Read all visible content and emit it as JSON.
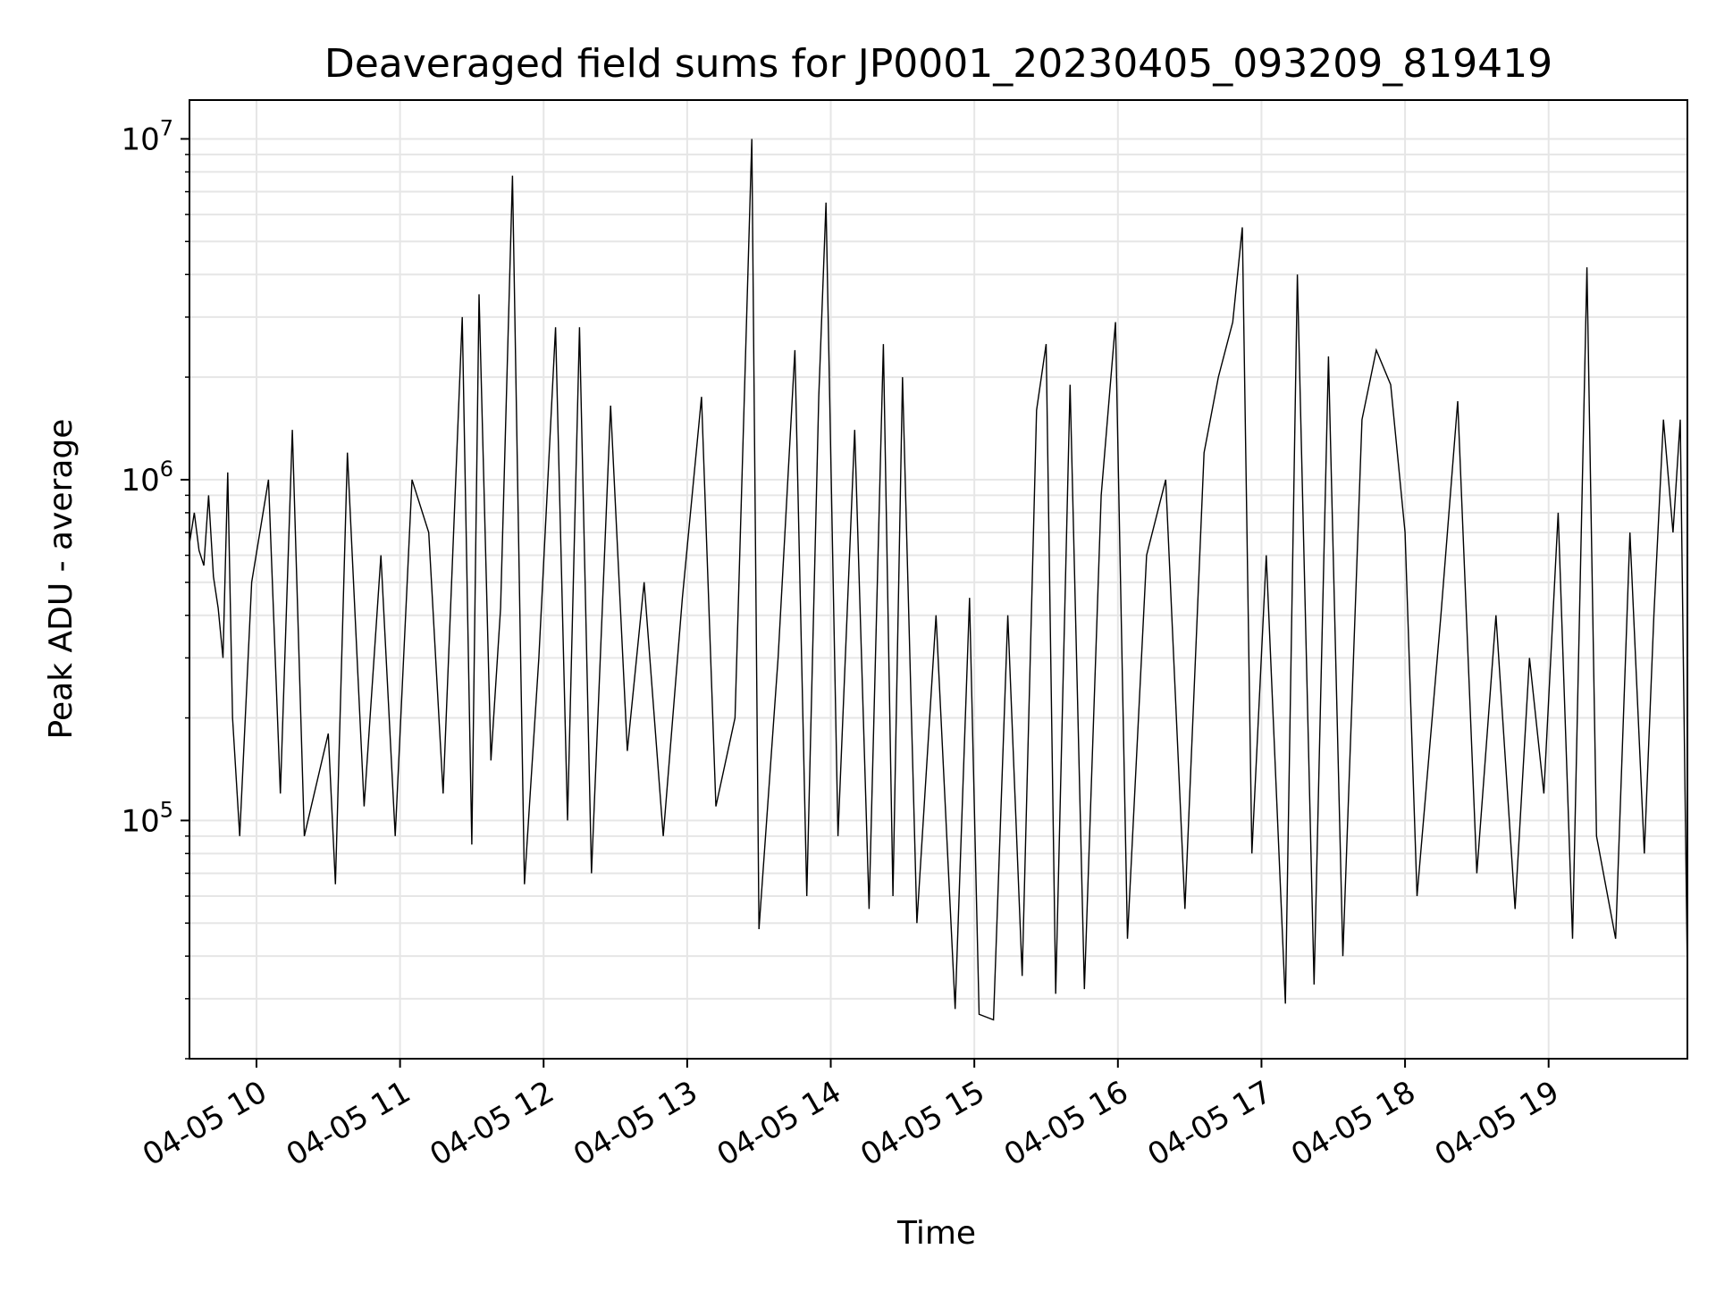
{
  "chart_data": {
    "type": "line",
    "title": "Deaveraged field sums for JP0001_20230405_093209_819419",
    "xlabel": "Time",
    "ylabel": "Peak ADU - average",
    "y_scale": "log",
    "grid": true,
    "line_color": "#000000",
    "grid_color": "#e6e6e6",
    "x_range": [
      "2023-04-05 09:32",
      "2023-04-05 19:58"
    ],
    "ylim": [
      20000,
      13000000
    ],
    "x_ticks": [
      {
        "time": "2023-04-05 10:00",
        "label": "04-05 10"
      },
      {
        "time": "2023-04-05 11:00",
        "label": "04-05 11"
      },
      {
        "time": "2023-04-05 12:00",
        "label": "04-05 12"
      },
      {
        "time": "2023-04-05 13:00",
        "label": "04-05 13"
      },
      {
        "time": "2023-04-05 14:00",
        "label": "04-05 14"
      },
      {
        "time": "2023-04-05 15:00",
        "label": "04-05 15"
      },
      {
        "time": "2023-04-05 16:00",
        "label": "04-05 16"
      },
      {
        "time": "2023-04-05 17:00",
        "label": "04-05 17"
      },
      {
        "time": "2023-04-05 18:00",
        "label": "04-05 18"
      },
      {
        "time": "2023-04-05 19:00",
        "label": "04-05 19"
      }
    ],
    "y_ticks": [
      {
        "value": 100000,
        "base": "10",
        "exp": "5"
      },
      {
        "value": 1000000,
        "base": "10",
        "exp": "6"
      },
      {
        "value": 10000000,
        "base": "10",
        "exp": "7"
      }
    ],
    "series": [
      {
        "points": [
          [
            "2023-04-05 09:32",
            650000
          ],
          [
            "2023-04-05 09:34",
            800000
          ],
          [
            "2023-04-05 09:36",
            620000
          ],
          [
            "2023-04-05 09:38",
            560000
          ],
          [
            "2023-04-05 09:40",
            900000
          ],
          [
            "2023-04-05 09:42",
            520000
          ],
          [
            "2023-04-05 09:44",
            420000
          ],
          [
            "2023-04-05 09:46",
            300000
          ],
          [
            "2023-04-05 09:48",
            1050000
          ],
          [
            "2023-04-05 09:50",
            200000
          ],
          [
            "2023-04-05 09:53",
            90000
          ],
          [
            "2023-04-05 09:58",
            500000
          ],
          [
            "2023-04-05 10:05",
            1000000
          ],
          [
            "2023-04-05 10:10",
            120000
          ],
          [
            "2023-04-05 10:15",
            1400000
          ],
          [
            "2023-04-05 10:20",
            90000
          ],
          [
            "2023-04-05 10:30",
            180000
          ],
          [
            "2023-04-05 10:33",
            65000
          ],
          [
            "2023-04-05 10:38",
            1200000
          ],
          [
            "2023-04-05 10:45",
            110000
          ],
          [
            "2023-04-05 10:52",
            600000
          ],
          [
            "2023-04-05 10:58",
            90000
          ],
          [
            "2023-04-05 11:05",
            1000000
          ],
          [
            "2023-04-05 11:12",
            700000
          ],
          [
            "2023-04-05 11:18",
            120000
          ],
          [
            "2023-04-05 11:26",
            3000000
          ],
          [
            "2023-04-05 11:30",
            85000
          ],
          [
            "2023-04-05 11:33",
            3500000
          ],
          [
            "2023-04-05 11:38",
            150000
          ],
          [
            "2023-04-05 11:42",
            420000
          ],
          [
            "2023-04-05 11:47",
            7800000
          ],
          [
            "2023-04-05 11:52",
            65000
          ],
          [
            "2023-04-05 11:58",
            300000
          ],
          [
            "2023-04-05 12:05",
            2800000
          ],
          [
            "2023-04-05 12:10",
            100000
          ],
          [
            "2023-04-05 12:15",
            2800000
          ],
          [
            "2023-04-05 12:20",
            70000
          ],
          [
            "2023-04-05 12:28",
            1650000
          ],
          [
            "2023-04-05 12:35",
            160000
          ],
          [
            "2023-04-05 12:42",
            500000
          ],
          [
            "2023-04-05 12:50",
            90000
          ],
          [
            "2023-04-05 12:58",
            450000
          ],
          [
            "2023-04-05 13:06",
            1750000
          ],
          [
            "2023-04-05 13:12",
            110000
          ],
          [
            "2023-04-05 13:20",
            200000
          ],
          [
            "2023-04-05 13:27",
            10000000
          ],
          [
            "2023-04-05 13:30",
            48000
          ],
          [
            "2023-04-05 13:38",
            300000
          ],
          [
            "2023-04-05 13:45",
            2400000
          ],
          [
            "2023-04-05 13:50",
            60000
          ],
          [
            "2023-04-05 13:55",
            1750000
          ],
          [
            "2023-04-05 13:58",
            6500000
          ],
          [
            "2023-04-05 14:03",
            90000
          ],
          [
            "2023-04-05 14:10",
            1400000
          ],
          [
            "2023-04-05 14:16",
            55000
          ],
          [
            "2023-04-05 14:22",
            2500000
          ],
          [
            "2023-04-05 14:26",
            60000
          ],
          [
            "2023-04-05 14:30",
            2000000
          ],
          [
            "2023-04-05 14:36",
            50000
          ],
          [
            "2023-04-05 14:44",
            400000
          ],
          [
            "2023-04-05 14:52",
            28000
          ],
          [
            "2023-04-05 14:58",
            450000
          ],
          [
            "2023-04-05 15:02",
            27000
          ],
          [
            "2023-04-05 15:08",
            26000
          ],
          [
            "2023-04-05 15:14",
            400000
          ],
          [
            "2023-04-05 15:20",
            35000
          ],
          [
            "2023-04-05 15:26",
            1600000
          ],
          [
            "2023-04-05 15:30",
            2500000
          ],
          [
            "2023-04-05 15:34",
            31000
          ],
          [
            "2023-04-05 15:40",
            1900000
          ],
          [
            "2023-04-05 15:46",
            32000
          ],
          [
            "2023-04-05 15:53",
            900000
          ],
          [
            "2023-04-05 15:59",
            2900000
          ],
          [
            "2023-04-05 16:04",
            45000
          ],
          [
            "2023-04-05 16:12",
            600000
          ],
          [
            "2023-04-05 16:20",
            1000000
          ],
          [
            "2023-04-05 16:28",
            55000
          ],
          [
            "2023-04-05 16:36",
            1200000
          ],
          [
            "2023-04-05 16:42",
            2000000
          ],
          [
            "2023-04-05 16:48",
            2900000
          ],
          [
            "2023-04-05 16:52",
            5500000
          ],
          [
            "2023-04-05 16:56",
            80000
          ],
          [
            "2023-04-05 17:02",
            600000
          ],
          [
            "2023-04-05 17:10",
            29000
          ],
          [
            "2023-04-05 17:15",
            4000000
          ],
          [
            "2023-04-05 17:22",
            33000
          ],
          [
            "2023-04-05 17:28",
            2300000
          ],
          [
            "2023-04-05 17:34",
            40000
          ],
          [
            "2023-04-05 17:42",
            1500000
          ],
          [
            "2023-04-05 17:48",
            2400000
          ],
          [
            "2023-04-05 17:54",
            1900000
          ],
          [
            "2023-04-05 18:00",
            700000
          ],
          [
            "2023-04-05 18:05",
            60000
          ],
          [
            "2023-04-05 18:15",
            400000
          ],
          [
            "2023-04-05 18:22",
            1700000
          ],
          [
            "2023-04-05 18:30",
            70000
          ],
          [
            "2023-04-05 18:38",
            400000
          ],
          [
            "2023-04-05 18:46",
            55000
          ],
          [
            "2023-04-05 18:52",
            300000
          ],
          [
            "2023-04-05 18:58",
            120000
          ],
          [
            "2023-04-05 19:04",
            800000
          ],
          [
            "2023-04-05 19:10",
            45000
          ],
          [
            "2023-04-05 19:16",
            4200000
          ],
          [
            "2023-04-05 19:20",
            90000
          ],
          [
            "2023-04-05 19:28",
            45000
          ],
          [
            "2023-04-05 19:34",
            700000
          ],
          [
            "2023-04-05 19:40",
            80000
          ],
          [
            "2023-04-05 19:44",
            400000
          ],
          [
            "2023-04-05 19:48",
            1500000
          ],
          [
            "2023-04-05 19:52",
            700000
          ],
          [
            "2023-04-05 19:55",
            1500000
          ],
          [
            "2023-04-05 19:58",
            35000
          ]
        ]
      }
    ]
  }
}
